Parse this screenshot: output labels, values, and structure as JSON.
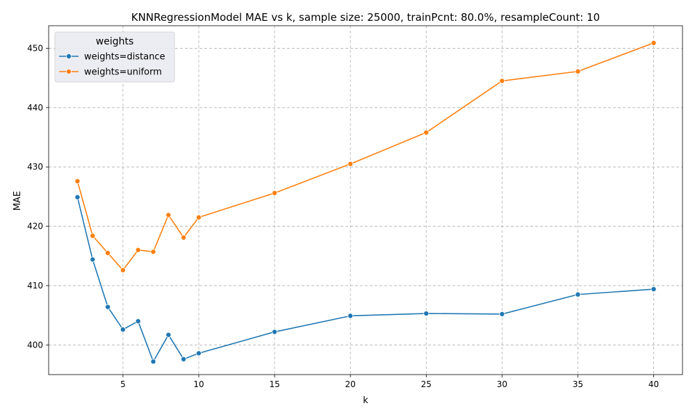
{
  "chart_data": {
    "type": "line",
    "title": "KNNRegressionModel MAE vs k, sample size: 25000, trainPcnt: 80.0%, resampleCount: 10",
    "xlabel": "k",
    "ylabel": "MAE",
    "xlim": [
      0.1,
      41.9
    ],
    "ylim": [
      395.0,
      453.8
    ],
    "xticks": [
      5,
      10,
      15,
      20,
      25,
      30,
      35,
      40
    ],
    "yticks": [
      400,
      410,
      420,
      430,
      440,
      450
    ],
    "grid": true,
    "legend": {
      "title": "weights",
      "position": "top-left"
    },
    "x": [
      2,
      3,
      4,
      5,
      6,
      7,
      8,
      9,
      10,
      15,
      20,
      25,
      30,
      35,
      40
    ],
    "series": [
      {
        "name": "weights=distance",
        "color": "#1f77b4",
        "values": [
          424.9,
          414.4,
          406.4,
          402.6,
          404.0,
          397.2,
          401.7,
          397.6,
          398.6,
          402.2,
          404.9,
          405.3,
          405.2,
          408.5,
          409.4
        ]
      },
      {
        "name": "weights=uniform",
        "color": "#ff7f0e",
        "values": [
          427.6,
          418.4,
          415.5,
          412.6,
          416.0,
          415.7,
          421.9,
          418.1,
          421.5,
          425.6,
          430.5,
          435.8,
          444.5,
          446.1,
          450.9
        ]
      }
    ]
  }
}
